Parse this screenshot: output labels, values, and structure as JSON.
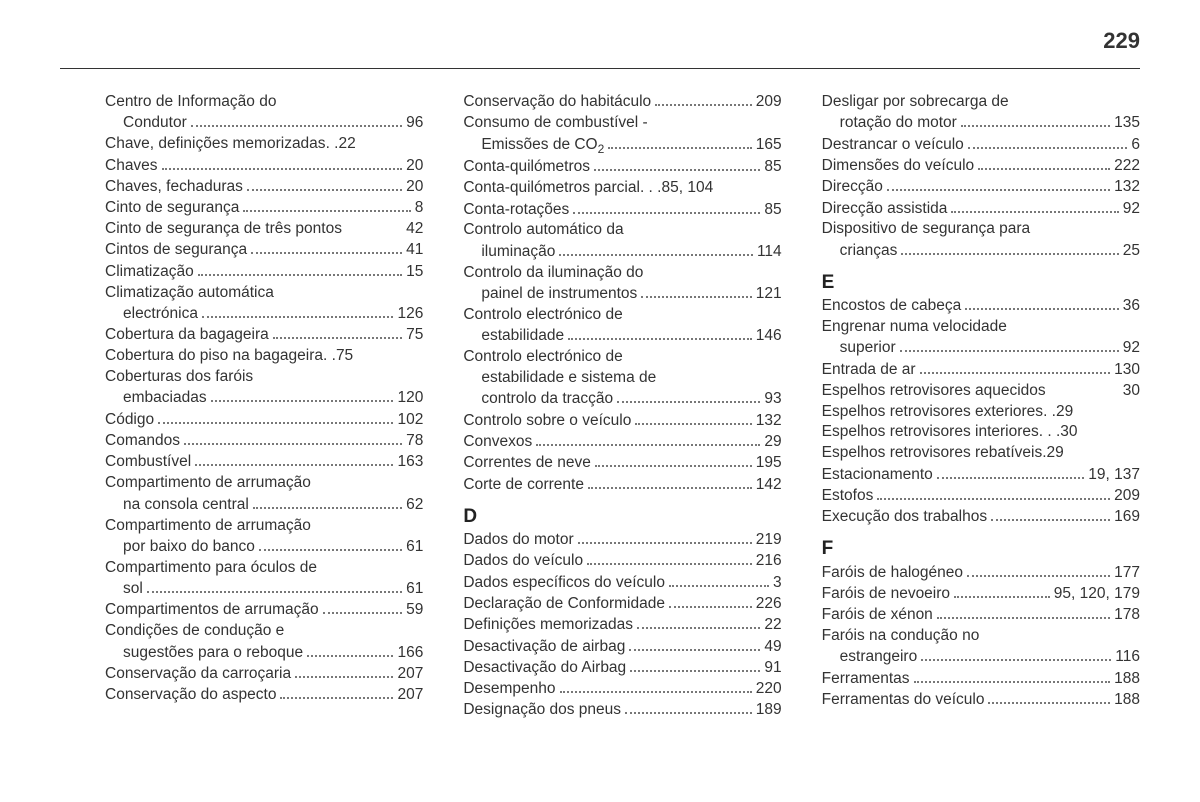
{
  "page_number": "229",
  "columns": [
    {
      "items": [
        {
          "type": "wrap",
          "label": "Centro de Informação do",
          "cont": "Condutor",
          "page": "96"
        },
        {
          "type": "entry",
          "label": "Chave, definições memorizadas",
          "sep": ". .",
          "page": "22"
        },
        {
          "type": "entry",
          "label": "Chaves",
          "page": "20"
        },
        {
          "type": "entry",
          "label": "Chaves, fechaduras",
          "page": "20"
        },
        {
          "type": "entry",
          "label": "Cinto de segurança",
          "page": "8"
        },
        {
          "type": "tight",
          "label": "Cinto de segurança de três pontos",
          "page": "42"
        },
        {
          "type": "entry",
          "label": "Cintos de segurança",
          "page": "41"
        },
        {
          "type": "entry",
          "label": "Climatização",
          "page": "15"
        },
        {
          "type": "wrap",
          "label": "Climatização automática",
          "cont": "electrónica",
          "page": "126"
        },
        {
          "type": "entry",
          "label": "Cobertura da bagageira",
          "page": "75"
        },
        {
          "type": "entry",
          "label": "Cobertura do piso na bagageira",
          "sep": ". .",
          "page": "75"
        },
        {
          "type": "wrap",
          "label": "Coberturas dos faróis",
          "cont": "embaciadas",
          "page": "120"
        },
        {
          "type": "entry",
          "label": "Código",
          "page": "102"
        },
        {
          "type": "entry",
          "label": "Comandos",
          "page": "78"
        },
        {
          "type": "entry",
          "label": "Combustível",
          "page": "163"
        },
        {
          "type": "wrap",
          "label": "Compartimento de arrumação",
          "cont": "na consola central",
          "page": "62"
        },
        {
          "type": "wrap",
          "label": "Compartimento de arrumação",
          "cont": "por baixo do banco",
          "page": "61"
        },
        {
          "type": "wrap",
          "label": "Compartimento para óculos de",
          "cont": "sol",
          "page": "61"
        },
        {
          "type": "entry",
          "label": "Compartimentos de arrumação",
          "page": "59"
        },
        {
          "type": "wrap",
          "label": "Condições de condução e",
          "cont": "sugestões para o reboque",
          "page": "166"
        },
        {
          "type": "entry",
          "label": "Conservação da carroçaria",
          "page": "207"
        },
        {
          "type": "entry",
          "label": "Conservação do aspecto",
          "page": "207"
        }
      ]
    },
    {
      "items": [
        {
          "type": "entry",
          "label": "Conservação do habitáculo",
          "page": "209"
        },
        {
          "type": "wrap",
          "label": "Consumo de combustível -",
          "cont_html": "Emissões de CO<span class=\"sub\">2</span>",
          "page": "165"
        },
        {
          "type": "entry",
          "label": "Conta-quilómetros",
          "page": "85"
        },
        {
          "type": "entry",
          "label": "Conta-quilómetros parcial",
          "sep": ". . .",
          "page": "85, 104"
        },
        {
          "type": "entry",
          "label": "Conta-rotações",
          "page": "85"
        },
        {
          "type": "wrap",
          "label": "Controlo automático da",
          "cont": "iluminação",
          "page": "114"
        },
        {
          "type": "wrap",
          "label": "Controlo da iluminação do",
          "cont": "painel de instrumentos",
          "page": "121"
        },
        {
          "type": "wrap",
          "label": "Controlo electrónico de",
          "cont": "estabilidade",
          "page": "146"
        },
        {
          "type": "wrap3",
          "label": "Controlo electrónico de",
          "cont": "estabilidade e sistema de",
          "cont2": "controlo da tracção",
          "page": "93"
        },
        {
          "type": "entry",
          "label": "Controlo sobre o veículo",
          "page": "132"
        },
        {
          "type": "entry",
          "label": "Convexos",
          "page": "29"
        },
        {
          "type": "entry",
          "label": "Correntes de neve",
          "page": "195"
        },
        {
          "type": "entry",
          "label": "Corte de corrente",
          "page": "142"
        },
        {
          "type": "heading",
          "letter": "D"
        },
        {
          "type": "entry",
          "label": "Dados do motor",
          "page": "219"
        },
        {
          "type": "entry",
          "label": "Dados do veículo",
          "page": "216"
        },
        {
          "type": "entry",
          "label": "Dados específicos do veículo",
          "page": "3"
        },
        {
          "type": "entry",
          "label": "Declaração de Conformidade",
          "page": "226"
        },
        {
          "type": "entry",
          "label": "Definições memorizadas",
          "page": "22"
        },
        {
          "type": "entry",
          "label": "Desactivação de airbag",
          "page": "49"
        },
        {
          "type": "entry",
          "label": "Desactivação do Airbag",
          "page": "91"
        },
        {
          "type": "entry",
          "label": "Desempenho",
          "page": "220"
        },
        {
          "type": "entry",
          "label": "Designação dos pneus",
          "page": "189"
        }
      ]
    },
    {
      "items": [
        {
          "type": "wrap",
          "label": "Desligar por sobrecarga de",
          "cont": "rotação do motor",
          "page": "135"
        },
        {
          "type": "entry",
          "label": "Destrancar o veículo",
          "page": "6"
        },
        {
          "type": "entry",
          "label": "Dimensões do veículo",
          "page": "222"
        },
        {
          "type": "entry",
          "label": "Direcção",
          "page": "132"
        },
        {
          "type": "entry",
          "label": "Direcção assistida",
          "page": "92"
        },
        {
          "type": "wrap",
          "label": "Dispositivo de segurança para",
          "cont": "crianças",
          "page": "25"
        },
        {
          "type": "heading",
          "letter": "E"
        },
        {
          "type": "entry",
          "label": "Encostos de cabeça",
          "page": "36"
        },
        {
          "type": "wrap",
          "label": "Engrenar numa velocidade",
          "cont": "superior",
          "page": "92"
        },
        {
          "type": "entry",
          "label": "Entrada de ar",
          "page": "130"
        },
        {
          "type": "tight",
          "label": "Espelhos retrovisores aquecidos",
          "page": "30"
        },
        {
          "type": "entry",
          "label": "Espelhos retrovisores exteriores",
          "sep": ". .",
          "page": "29"
        },
        {
          "type": "entry",
          "label": "Espelhos retrovisores interiores",
          "sep": ". . .",
          "page": "30"
        },
        {
          "type": "entry",
          "label": "Espelhos retrovisores rebatíveis",
          "sep": " .",
          "page": "29"
        },
        {
          "type": "entry",
          "label": "Estacionamento",
          "page": "19, 137"
        },
        {
          "type": "entry",
          "label": "Estofos",
          "page": "209"
        },
        {
          "type": "entry",
          "label": "Execução dos trabalhos",
          "page": "169"
        },
        {
          "type": "heading",
          "letter": "F"
        },
        {
          "type": "entry",
          "label": "Faróis de halogéneo",
          "page": "177"
        },
        {
          "type": "entry",
          "label": "Faróis de nevoeiro",
          "page": "95, 120, 179"
        },
        {
          "type": "entry",
          "label": "Faróis de xénon",
          "page": "178"
        },
        {
          "type": "wrap",
          "label": "Faróis na condução no",
          "cont": "estrangeiro",
          "page": "116"
        },
        {
          "type": "entry",
          "label": "Ferramentas",
          "page": "188"
        },
        {
          "type": "entry",
          "label": "Ferramentas do veículo",
          "page": "188"
        }
      ]
    }
  ]
}
